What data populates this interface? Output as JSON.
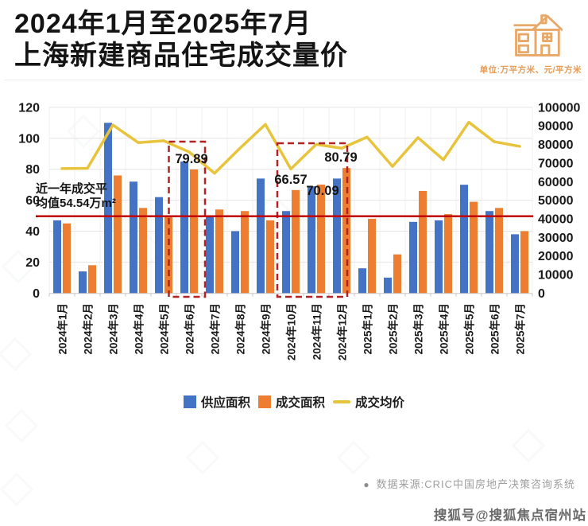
{
  "header": {
    "title_line1": "2024年1月至2025年7月",
    "title_line2": "上海新建商品住宅成交量价",
    "unit_note": "单位:万平方米、元/平方米"
  },
  "footer": {
    "bullet": "●",
    "source": "数据来源:CRIC中国房地产决策咨询系统",
    "watermark": "搜狐号@搜狐焦点宿州站"
  },
  "colors": {
    "supply_bar": "#4472C4",
    "transaction_bar": "#ED7D31",
    "price_line": "#E8C33C",
    "average_line": "#C00000",
    "highlight_box": "#B22222",
    "grid": "#e4e4e4",
    "axis_text": "#1a1a1a",
    "unit_note": "#E79B53",
    "house_icon": "#E8A868"
  },
  "chart_data": {
    "type": "bar",
    "subtype": "combo-bar-line",
    "title": "2024年1月至2025年7月上海新建商品住宅成交量价",
    "categories": [
      "2024年1月",
      "2024年2月",
      "2024年3月",
      "2024年4月",
      "2024年5月",
      "2024年6月",
      "2024年7月",
      "2024年8月",
      "2024年9月",
      "2024年10月",
      "2024年11月",
      "2024年12月",
      "2025年1月",
      "2025年2月",
      "2025年3月",
      "2025年4月",
      "2025年5月",
      "2025年6月",
      "2025年7月"
    ],
    "series": [
      {
        "name": "供应面积",
        "type": "bar",
        "axis": "left",
        "color": "#4472C4",
        "values": [
          47,
          14,
          110,
          72,
          62,
          85,
          49,
          40,
          74,
          53,
          69,
          74,
          16,
          10,
          46,
          47,
          70,
          53,
          38
        ]
      },
      {
        "name": "成交面积",
        "type": "bar",
        "axis": "left",
        "color": "#ED7D31",
        "values": [
          45,
          18,
          76,
          55,
          50,
          79.89,
          54,
          53,
          47,
          66.57,
          70.09,
          80.79,
          48,
          25,
          66,
          51,
          59,
          55,
          40
        ]
      },
      {
        "name": "成交均价",
        "type": "line",
        "axis": "right",
        "color": "#E8C33C",
        "values": [
          67000,
          67200,
          90500,
          81000,
          82000,
          76000,
          64500,
          78000,
          90800,
          66800,
          80100,
          78000,
          84000,
          68200,
          83700,
          71800,
          92000,
          81500,
          79000
        ]
      }
    ],
    "left_axis": {
      "min": 0,
      "max": 120,
      "step": 20,
      "unit": "万平方米"
    },
    "right_axis": {
      "min": 0,
      "max": 100000,
      "step": 10000,
      "unit": "元/平方米"
    },
    "grid": "horizontal gridlines every 20 (left axis)",
    "legend_position": "bottom",
    "annotations": {
      "average_line": {
        "value": 54.54,
        "label_line1": "近一年成交平",
        "label_line2": "均值54.54万m²",
        "color": "#C00000"
      },
      "data_labels": [
        {
          "category": "2024年6月",
          "series": "成交面积",
          "text": "79.89"
        },
        {
          "category": "2024年10月",
          "series": "成交面积",
          "text": "66.57"
        },
        {
          "category": "2024年11月",
          "series": "成交面积",
          "text": "70.09"
        },
        {
          "category": "2024年12月",
          "series": "成交面积",
          "text": "80.79"
        }
      ],
      "highlight_boxes": [
        {
          "categories": "2024年6月",
          "style": "dashed",
          "color": "#B22222"
        },
        {
          "categories": "2024年10月至2024年12月",
          "style": "dashed",
          "color": "#B22222"
        }
      ]
    }
  }
}
